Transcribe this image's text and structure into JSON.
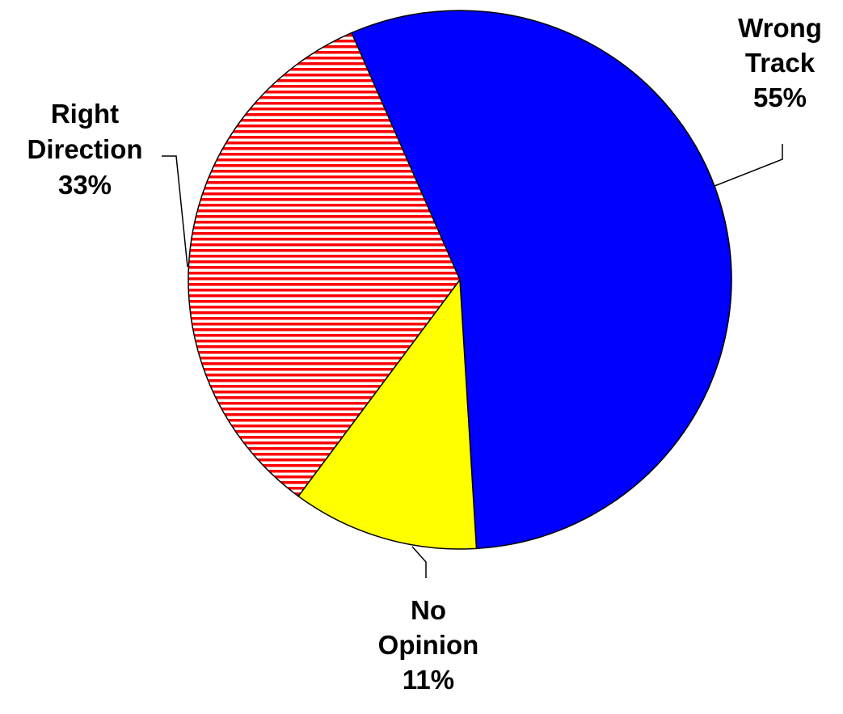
{
  "chart_data": {
    "type": "pie",
    "slices": [
      {
        "label_lines": [
          "Wrong",
          "Track"
        ],
        "value": 55,
        "value_label": "55%",
        "color": "#0000FF",
        "pattern": "solid"
      },
      {
        "label_lines": [
          "No",
          "Opinion"
        ],
        "value": 11,
        "value_label": "11%",
        "color": "#FFFF00",
        "pattern": "solid"
      },
      {
        "label_lines": [
          "Right",
          "Direction"
        ],
        "value": 33,
        "value_label": "33%",
        "color": "#FF0000",
        "pattern": "horizontal-stripes"
      }
    ],
    "start_angle_deg": -23.5,
    "direction": "clockwise",
    "legend": "none",
    "label_style": "callout-with-leader-lines"
  }
}
